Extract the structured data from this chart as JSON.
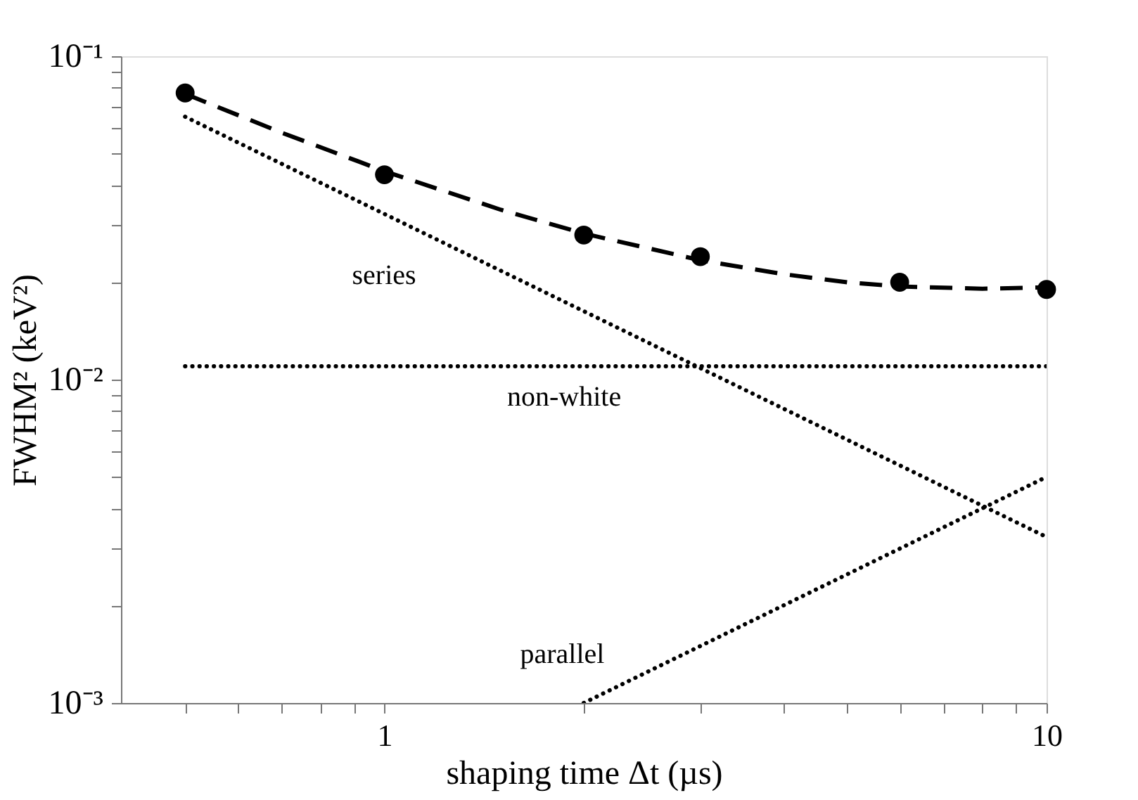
{
  "chart_data": {
    "type": "line",
    "xlabel": "shaping time Δt (µs)",
    "ylabel": "FWHM² (keV²)",
    "log": "xy",
    "grid": false,
    "xlim": [
      0.4,
      10
    ],
    "ylim": [
      0.001,
      0.1
    ],
    "xticks": [
      {
        "value": 0.5,
        "label": null
      },
      {
        "value": 0.6,
        "label": null
      },
      {
        "value": 0.7,
        "label": null
      },
      {
        "value": 0.8,
        "label": null
      },
      {
        "value": 0.9,
        "label": null
      },
      1,
      {
        "value": 2,
        "label": null
      },
      {
        "value": 3,
        "label": null
      },
      {
        "value": 4,
        "label": null
      },
      {
        "value": 5,
        "label": null
      },
      {
        "value": 6,
        "label": null
      },
      {
        "value": 7,
        "label": null
      },
      {
        "value": 8,
        "label": null
      },
      {
        "value": 9,
        "label": null
      },
      10
    ],
    "yticks": [
      {
        "value": 0.001,
        "label": "10⁻³"
      },
      {
        "value": 0.002,
        "label": null
      },
      {
        "value": 0.003,
        "label": null
      },
      {
        "value": 0.004,
        "label": null
      },
      {
        "value": 0.005,
        "label": null
      },
      {
        "value": 0.006,
        "label": null
      },
      {
        "value": 0.007,
        "label": null
      },
      {
        "value": 0.008,
        "label": null
      },
      {
        "value": 0.009,
        "label": null
      },
      {
        "value": 0.01,
        "label": "10⁻²"
      },
      {
        "value": 0.02,
        "label": null
      },
      {
        "value": 0.03,
        "label": null
      },
      {
        "value": 0.04,
        "label": null
      },
      {
        "value": 0.05,
        "label": null
      },
      {
        "value": 0.06,
        "label": null
      },
      {
        "value": 0.07,
        "label": null
      },
      {
        "value": 0.08,
        "label": null
      },
      {
        "value": 0.09,
        "label": null
      },
      {
        "value": 0.1,
        "label": "10⁻¹"
      }
    ],
    "series": [
      {
        "line_style": "dashed",
        "color": "#000000",
        "x": [
          0.5,
          0.7,
          1,
          1.5,
          2,
          3,
          4,
          5,
          6,
          8,
          10
        ],
        "values": [
          0.0765,
          0.058,
          0.0441,
          0.0335,
          0.0283,
          0.0234,
          0.0212,
          0.02,
          0.0194,
          0.0191,
          0.0193
        ]
      },
      {
        "name": "series",
        "line_style": "dotted",
        "color": "#000000",
        "x": [
          0.5,
          10
        ],
        "values": [
          0.065,
          0.00326
        ]
      },
      {
        "name": "non-white",
        "line_style": "dotted",
        "color": "#000000",
        "x": [
          0.5,
          10
        ],
        "values": [
          0.011,
          0.011
        ]
      },
      {
        "name": "parallel",
        "line_style": "dotted",
        "color": "#000000",
        "x": [
          2,
          10
        ],
        "values": [
          0.001,
          0.005
        ]
      },
      {
        "type": "scatter",
        "marker": "circle",
        "color": "#000000",
        "x": [
          0.5,
          1,
          2,
          3,
          6,
          10
        ],
        "values": [
          0.077,
          0.043,
          0.028,
          0.024,
          0.02,
          0.019
        ]
      }
    ]
  }
}
